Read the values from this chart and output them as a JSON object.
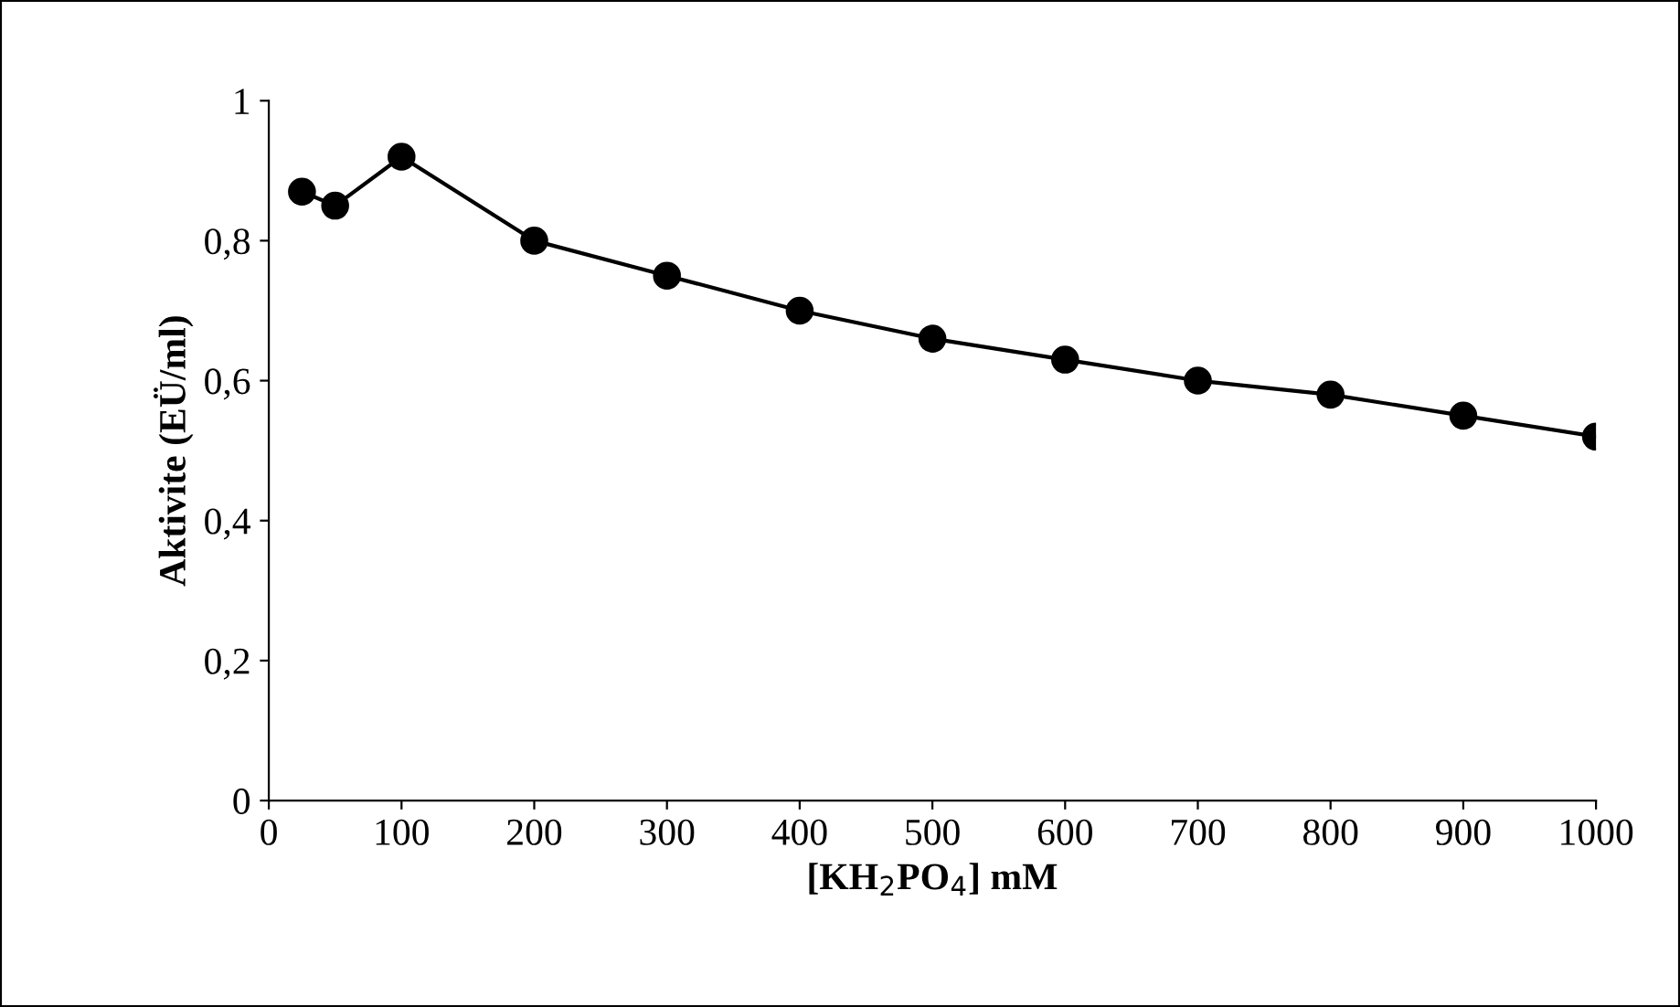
{
  "chart_data": {
    "type": "line",
    "xlabel": "[KH$_{2}$PO$_{4}$] mM",
    "ylabel": "Aktivite (EÜ/ml)",
    "x": [
      25,
      50,
      100,
      200,
      300,
      400,
      500,
      600,
      700,
      800,
      900,
      1000
    ],
    "series": [
      {
        "color": "#000000",
        "values": [
          0.87,
          0.85,
          0.92,
          0.8,
          0.75,
          0.7,
          0.66,
          0.63,
          0.6,
          0.58,
          0.55,
          0.52
        ]
      }
    ],
    "xlim": [
      0,
      1000
    ],
    "xticks": [
      0,
      100,
      200,
      300,
      400,
      500,
      600,
      700,
      800,
      900,
      1000
    ],
    "ylim": [
      0,
      1
    ],
    "yticks": [
      0,
      {
        "value": 0.2,
        "label": "0,2"
      },
      {
        "value": 0.4,
        "label": "0,4"
      },
      {
        "value": 0.6,
        "label": "0,6"
      },
      {
        "value": 0.8,
        "label": "0,8"
      },
      1
    ],
    "grid": false,
    "legend": false,
    "marker": "circle",
    "line_style": "solid"
  }
}
